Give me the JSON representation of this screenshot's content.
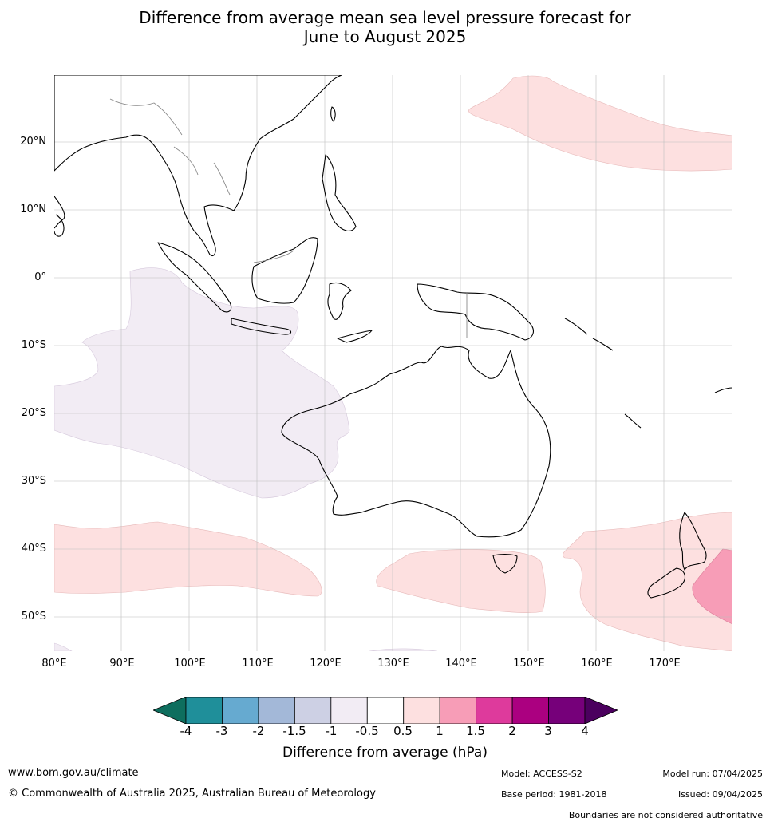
{
  "title_line1": "Difference from average mean sea level pressure forecast for",
  "title_line2": "June to August 2025",
  "lat_labels": [
    "20°N",
    "10°N",
    "0°",
    "10°S",
    "20°S",
    "30°S",
    "40°S",
    "50°S"
  ],
  "lon_labels": [
    "80°E",
    "90°E",
    "100°E",
    "110°E",
    "120°E",
    "130°E",
    "140°E",
    "150°E",
    "160°E",
    "170°E"
  ],
  "colorbar": {
    "ticks": [
      "-4",
      "-3",
      "-2",
      "-1.5",
      "-1",
      "-0.5",
      "0.5",
      "1",
      "1.5",
      "2",
      "3",
      "4"
    ],
    "colors": [
      "#0e6e5e",
      "#1f8f9a",
      "#66aad0",
      "#a3b8d8",
      "#cdd0e4",
      "#f2ecf4",
      "#ffffff",
      "#fde0e0",
      "#f79db7",
      "#de3a9c",
      "#ab0080",
      "#76007a",
      "#4b005e"
    ],
    "label": "Difference from average (hPa)"
  },
  "footer": {
    "website": "www.bom.gov.au/climate",
    "copyright": "© Commonwealth of Australia 2025, Australian Bureau of Meteorology",
    "model": "Model: ACCESS-S2",
    "model_run": "Model run: 07/04/2025",
    "base_period": "Base period: 1981-2018",
    "issued": "Issued: 09/04/2025",
    "disclaimer": "Boundaries are not considered authoritative"
  }
}
